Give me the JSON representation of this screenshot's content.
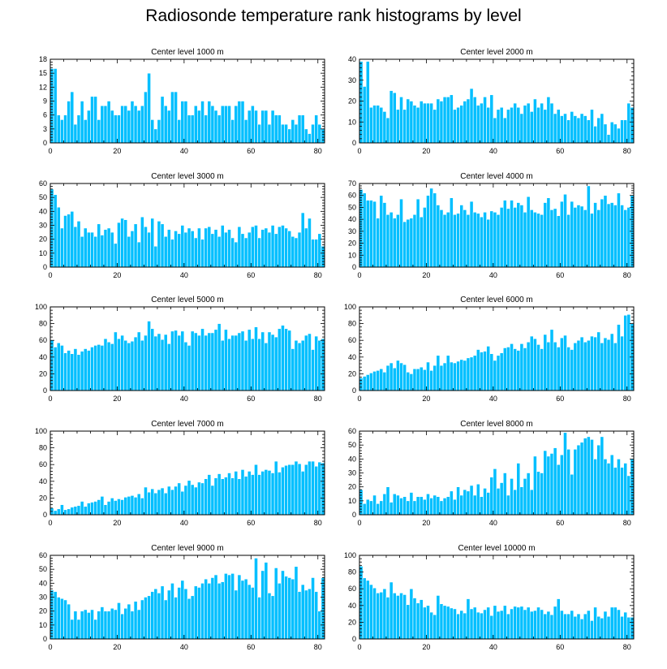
{
  "figure": {
    "title": "Radiosonde temperature rank histograms by level",
    "bar_color": "#00bfff"
  },
  "chart_data": [
    {
      "type": "bar",
      "title": "Center level 1000 m",
      "xlim": [
        0,
        82
      ],
      "ylim": [
        0,
        18
      ],
      "xticks": [
        0,
        20,
        40,
        60,
        80
      ],
      "yticks": [
        0,
        3,
        6,
        9,
        12,
        15,
        18
      ],
      "values": [
        16,
        16,
        6,
        5,
        6,
        9,
        11,
        4,
        6,
        9,
        5,
        7,
        10,
        10,
        5,
        8,
        8,
        9,
        7,
        6,
        6,
        8,
        8,
        7,
        9,
        8,
        7,
        8,
        11,
        15,
        5,
        3,
        5,
        10,
        8,
        7,
        11,
        11,
        5,
        9,
        9,
        6,
        6,
        8,
        7,
        9,
        6,
        9,
        8,
        7,
        6,
        8,
        8,
        8,
        5,
        8,
        9,
        9,
        5,
        7,
        8,
        7,
        4,
        7,
        7,
        4,
        7,
        6,
        6,
        4,
        4,
        3,
        5,
        4,
        6,
        6,
        3,
        2,
        4,
        6,
        4,
        3
      ]
    },
    {
      "type": "bar",
      "title": "Center level 2000 m",
      "xlim": [
        0,
        82
      ],
      "ylim": [
        0,
        40
      ],
      "xticks": [
        0,
        20,
        40,
        60,
        80
      ],
      "yticks": [
        0,
        10,
        20,
        30,
        40
      ],
      "values": [
        39,
        27,
        39,
        17,
        18,
        18,
        17,
        15,
        12,
        25,
        24,
        16,
        22,
        16,
        21,
        20,
        18,
        17,
        20,
        19,
        19,
        19,
        16,
        21,
        20,
        22,
        22,
        23,
        16,
        17,
        18,
        20,
        21,
        26,
        22,
        18,
        19,
        22,
        17,
        23,
        12,
        16,
        17,
        12,
        16,
        17,
        19,
        17,
        14,
        18,
        19,
        15,
        21,
        17,
        19,
        16,
        22,
        19,
        14,
        16,
        13,
        14,
        11,
        15,
        13,
        12,
        14,
        13,
        11,
        16,
        8,
        12,
        14,
        9,
        4,
        10,
        9,
        7,
        11,
        11,
        19,
        17
      ]
    },
    {
      "type": "bar",
      "title": "Center level 3000 m",
      "xlim": [
        0,
        82
      ],
      "ylim": [
        0,
        60
      ],
      "xticks": [
        0,
        20,
        40,
        60,
        80
      ],
      "yticks": [
        0,
        10,
        20,
        30,
        40,
        50,
        60
      ],
      "values": [
        56,
        52,
        43,
        28,
        37,
        38,
        40,
        29,
        33,
        22,
        28,
        25,
        25,
        22,
        31,
        23,
        27,
        28,
        25,
        17,
        32,
        35,
        34,
        22,
        26,
        31,
        18,
        36,
        29,
        25,
        35,
        15,
        33,
        31,
        22,
        27,
        20,
        26,
        24,
        30,
        25,
        28,
        26,
        21,
        28,
        20,
        28,
        29,
        24,
        27,
        22,
        30,
        25,
        27,
        21,
        18,
        29,
        24,
        21,
        25,
        29,
        30,
        21,
        27,
        28,
        25,
        30,
        24,
        29,
        30,
        28,
        26,
        22,
        21,
        25,
        39,
        28,
        35,
        20,
        20,
        24,
        15
      ]
    },
    {
      "type": "bar",
      "title": "Center level 4000 m",
      "xlim": [
        0,
        82
      ],
      "ylim": [
        0,
        70
      ],
      "xticks": [
        0,
        20,
        40,
        60,
        80
      ],
      "yticks": [
        0,
        10,
        20,
        30,
        40,
        50,
        60,
        70
      ],
      "values": [
        65,
        62,
        56,
        56,
        55,
        41,
        60,
        54,
        44,
        46,
        41,
        44,
        57,
        38,
        40,
        41,
        44,
        57,
        42,
        50,
        60,
        66,
        62,
        52,
        48,
        44,
        46,
        58,
        44,
        45,
        52,
        48,
        44,
        55,
        46,
        45,
        42,
        46,
        40,
        47,
        46,
        44,
        50,
        56,
        49,
        56,
        50,
        54,
        52,
        46,
        59,
        48,
        46,
        45,
        44,
        54,
        58,
        48,
        49,
        43,
        55,
        61,
        44,
        55,
        50,
        52,
        51,
        48,
        68,
        45,
        54,
        48,
        57,
        60,
        53,
        54,
        52,
        62,
        52,
        48,
        50,
        60
      ]
    },
    {
      "type": "bar",
      "title": "Center level 5000 m",
      "xlim": [
        0,
        82
      ],
      "ylim": [
        0,
        100
      ],
      "xticks": [
        0,
        20,
        40,
        60,
        80
      ],
      "yticks": [
        0,
        20,
        40,
        60,
        80,
        100
      ],
      "values": [
        60,
        52,
        57,
        54,
        45,
        48,
        44,
        50,
        43,
        47,
        50,
        48,
        52,
        54,
        55,
        54,
        62,
        58,
        56,
        70,
        62,
        66,
        60,
        57,
        59,
        64,
        70,
        60,
        66,
        83,
        74,
        65,
        68,
        61,
        67,
        56,
        71,
        72,
        66,
        71,
        58,
        54,
        71,
        69,
        66,
        74,
        66,
        69,
        69,
        73,
        80,
        60,
        73,
        62,
        66,
        66,
        69,
        71,
        60,
        73,
        62,
        76,
        62,
        70,
        57,
        70,
        67,
        64,
        74,
        78,
        74,
        72,
        50,
        60,
        57,
        60,
        66,
        68,
        49,
        65,
        60,
        62
      ]
    },
    {
      "type": "bar",
      "title": "Center level 6000 m",
      "xlim": [
        0,
        82
      ],
      "ylim": [
        0,
        100
      ],
      "xticks": [
        0,
        20,
        40,
        60,
        80
      ],
      "yticks": [
        0,
        20,
        40,
        60,
        80,
        100
      ],
      "values": [
        15,
        17,
        19,
        21,
        23,
        24,
        26,
        22,
        30,
        33,
        27,
        36,
        33,
        31,
        22,
        20,
        26,
        26,
        28,
        25,
        34,
        24,
        30,
        42,
        30,
        33,
        42,
        34,
        33,
        35,
        37,
        36,
        39,
        40,
        42,
        49,
        46,
        47,
        53,
        44,
        36,
        42,
        45,
        51,
        52,
        56,
        50,
        48,
        56,
        51,
        58,
        65,
        62,
        55,
        50,
        67,
        58,
        73,
        58,
        52,
        63,
        66,
        52,
        49,
        57,
        60,
        64,
        58,
        60,
        65,
        64,
        70,
        57,
        63,
        61,
        68,
        57,
        79,
        65,
        90,
        91,
        80
      ]
    },
    {
      "type": "bar",
      "title": "Center level 7000 m",
      "xlim": [
        0,
        82
      ],
      "ylim": [
        0,
        100
      ],
      "xticks": [
        0,
        20,
        40,
        60,
        80
      ],
      "yticks": [
        0,
        20,
        40,
        60,
        80,
        100
      ],
      "values": [
        8,
        5,
        7,
        12,
        6,
        7,
        9,
        10,
        11,
        16,
        10,
        14,
        15,
        16,
        18,
        22,
        12,
        16,
        20,
        17,
        19,
        18,
        21,
        22,
        23,
        21,
        25,
        20,
        33,
        27,
        31,
        26,
        30,
        32,
        26,
        34,
        30,
        34,
        38,
        28,
        35,
        41,
        36,
        33,
        39,
        38,
        43,
        48,
        35,
        44,
        49,
        43,
        45,
        50,
        44,
        52,
        43,
        54,
        46,
        52,
        48,
        60,
        48,
        52,
        54,
        53,
        50,
        64,
        51,
        57,
        59,
        60,
        60,
        64,
        61,
        52,
        60,
        64,
        64,
        58,
        63,
        62
      ]
    },
    {
      "type": "bar",
      "title": "Center level 8000 m",
      "xlim": [
        0,
        82
      ],
      "ylim": [
        0,
        60
      ],
      "xticks": [
        0,
        20,
        40,
        60,
        80
      ],
      "yticks": [
        0,
        10,
        20,
        30,
        40,
        50,
        60
      ],
      "values": [
        18,
        8,
        11,
        10,
        14,
        8,
        10,
        15,
        20,
        9,
        15,
        14,
        12,
        13,
        10,
        16,
        10,
        13,
        13,
        11,
        15,
        12,
        14,
        13,
        10,
        12,
        13,
        17,
        11,
        20,
        14,
        18,
        17,
        21,
        14,
        22,
        13,
        19,
        16,
        27,
        33,
        19,
        23,
        30,
        14,
        26,
        18,
        37,
        20,
        26,
        30,
        18,
        42,
        31,
        30,
        46,
        42,
        44,
        48,
        36,
        43,
        59,
        47,
        29,
        47,
        50,
        52,
        55,
        56,
        54,
        40,
        50,
        56,
        40,
        37,
        43,
        34,
        40,
        34,
        37,
        28,
        40
      ]
    },
    {
      "type": "bar",
      "title": "Center level 9000 m",
      "xlim": [
        0,
        82
      ],
      "ylim": [
        0,
        60
      ],
      "xticks": [
        0,
        20,
        40,
        60,
        80
      ],
      "yticks": [
        0,
        10,
        20,
        30,
        40,
        50,
        60
      ],
      "values": [
        35,
        34,
        30,
        29,
        28,
        25,
        14,
        20,
        14,
        20,
        21,
        19,
        21,
        14,
        20,
        23,
        20,
        20,
        22,
        21,
        26,
        18,
        22,
        25,
        20,
        27,
        21,
        28,
        30,
        31,
        34,
        36,
        33,
        38,
        28,
        35,
        40,
        30,
        37,
        42,
        36,
        29,
        31,
        38,
        37,
        40,
        43,
        40,
        44,
        46,
        40,
        41,
        47,
        46,
        47,
        35,
        46,
        42,
        43,
        39,
        37,
        58,
        30,
        49,
        55,
        33,
        31,
        51,
        40,
        49,
        45,
        44,
        43,
        52,
        34,
        39,
        35,
        36,
        44,
        34,
        20,
        44
      ]
    },
    {
      "type": "bar",
      "title": "Center level 10000 m",
      "xlim": [
        0,
        82
      ],
      "ylim": [
        0,
        100
      ],
      "xticks": [
        0,
        20,
        40,
        60,
        80
      ],
      "yticks": [
        0,
        20,
        40,
        60,
        80,
        100
      ],
      "values": [
        87,
        73,
        70,
        65,
        61,
        55,
        56,
        60,
        50,
        68,
        55,
        52,
        55,
        53,
        41,
        60,
        49,
        43,
        47,
        38,
        40,
        32,
        29,
        52,
        42,
        40,
        39,
        37,
        36,
        30,
        34,
        31,
        48,
        36,
        38,
        32,
        31,
        35,
        38,
        28,
        40,
        33,
        34,
        40,
        30,
        36,
        39,
        38,
        39,
        35,
        38,
        33,
        34,
        38,
        35,
        30,
        33,
        29,
        39,
        48,
        34,
        30,
        30,
        34,
        27,
        30,
        24,
        30,
        34,
        22,
        38,
        27,
        25,
        33,
        27,
        38,
        38,
        35,
        27,
        32,
        26,
        26
      ]
    }
  ]
}
